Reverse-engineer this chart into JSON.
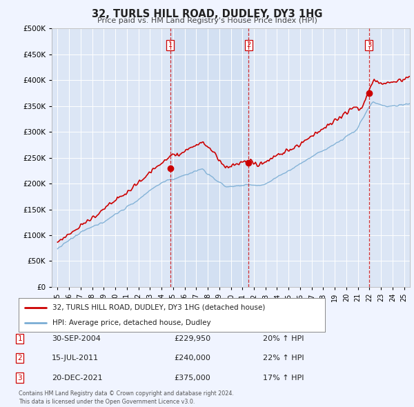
{
  "title": "32, TURLS HILL ROAD, DUDLEY, DY3 1HG",
  "subtitle": "Price paid vs. HM Land Registry's House Price Index (HPI)",
  "background_color": "#f0f4ff",
  "plot_bg": "#dce6f5",
  "shaded_bg": "#ccdcf0",
  "red_color": "#cc0000",
  "blue_color": "#7aadd4",
  "sale_dates": [
    2004.75,
    2011.54,
    2021.97
  ],
  "sale_prices": [
    229950,
    240000,
    375000
  ],
  "transaction_info": [
    {
      "label": "1",
      "date": "30-SEP-2004",
      "price": "£229,950",
      "change": "20% ↑ HPI"
    },
    {
      "label": "2",
      "date": "15-JUL-2011",
      "price": "£240,000",
      "change": "22% ↑ HPI"
    },
    {
      "label": "3",
      "date": "20-DEC-2021",
      "price": "£375,000",
      "change": "17% ↑ HPI"
    }
  ],
  "legend_entries": [
    "32, TURLS HILL ROAD, DUDLEY, DY3 1HG (detached house)",
    "HPI: Average price, detached house, Dudley"
  ],
  "footer": "Contains HM Land Registry data © Crown copyright and database right 2024.\nThis data is licensed under the Open Government Licence v3.0.",
  "ylim": [
    0,
    500000
  ],
  "yticks": [
    0,
    50000,
    100000,
    150000,
    200000,
    250000,
    300000,
    350000,
    400000,
    450000,
    500000
  ],
  "xlim": [
    1994.5,
    2025.5
  ],
  "xticks": [
    1995,
    1996,
    1997,
    1998,
    1999,
    2000,
    2001,
    2002,
    2003,
    2004,
    2005,
    2006,
    2007,
    2008,
    2009,
    2010,
    2011,
    2012,
    2013,
    2014,
    2015,
    2016,
    2017,
    2018,
    2019,
    2020,
    2021,
    2022,
    2023,
    2024,
    2025
  ]
}
